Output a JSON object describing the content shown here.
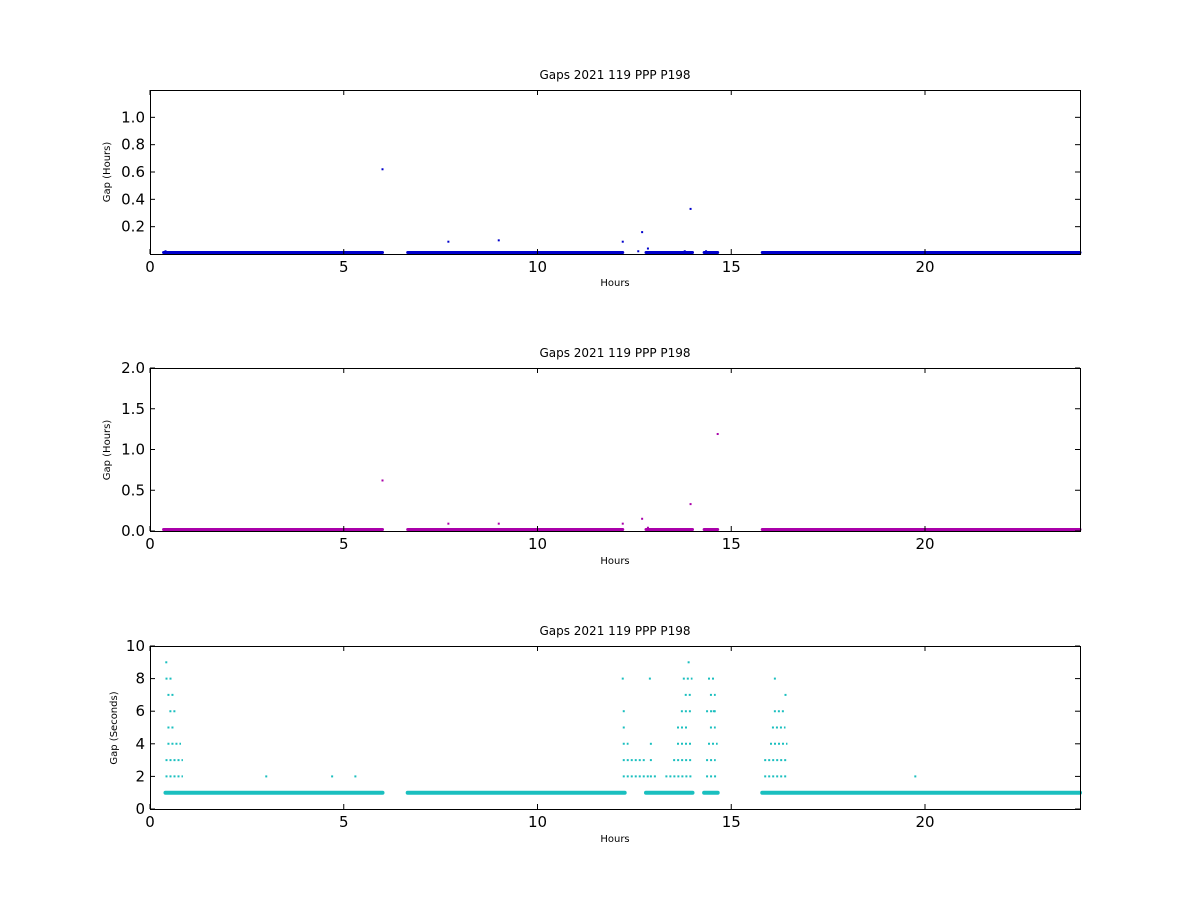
{
  "chart_data": [
    {
      "type": "scatter",
      "title": "Gaps 2021 119 PPP  P198",
      "xlabel": "Hours",
      "ylabel": "Gap (Hours)",
      "xlim": [
        0,
        24
      ],
      "ylim": [
        0,
        1.2
      ],
      "xticks": [
        0,
        5,
        10,
        15,
        20
      ],
      "yticks": [
        0.2,
        0.4,
        0.6,
        0.8,
        1.0
      ],
      "ytick_labels": [
        "0.2",
        "0.4",
        "0.6",
        "0.8",
        "1.0"
      ],
      "grid": false,
      "color": "#0000cc",
      "baseline_y": 0.0003,
      "baseline_segments": [
        [
          0.35,
          6.0
        ],
        [
          6.65,
          12.2
        ],
        [
          12.8,
          14.0
        ],
        [
          14.3,
          14.65
        ],
        [
          15.8,
          24.0
        ]
      ],
      "outliers": [
        {
          "x": 0.4,
          "y": 0.02
        },
        {
          "x": 0.5,
          "y": 0.01
        },
        {
          "x": 6.0,
          "y": 0.62
        },
        {
          "x": 7.7,
          "y": 0.09
        },
        {
          "x": 9.0,
          "y": 0.1
        },
        {
          "x": 12.2,
          "y": 0.09
        },
        {
          "x": 12.6,
          "y": 0.02
        },
        {
          "x": 12.7,
          "y": 0.16
        },
        {
          "x": 12.85,
          "y": 0.04
        },
        {
          "x": 13.8,
          "y": 0.02
        },
        {
          "x": 13.95,
          "y": 0.33
        },
        {
          "x": 14.35,
          "y": 0.02
        },
        {
          "x": 15.8,
          "y": 0.01
        }
      ]
    },
    {
      "type": "scatter",
      "title": "Gaps 2021 119 PPP  P198",
      "xlabel": "Hours",
      "ylabel": "Gap (Hours)",
      "xlim": [
        0,
        24
      ],
      "ylim": [
        0,
        2.0
      ],
      "xticks": [
        0,
        5,
        10,
        15,
        20
      ],
      "yticks": [
        0.0,
        0.5,
        1.0,
        1.5,
        2.0
      ],
      "ytick_labels": [
        "0.0",
        "0.5",
        "1.0",
        "1.5",
        "2.0"
      ],
      "grid": false,
      "color": "#aa00aa",
      "baseline_y": 0.0003,
      "baseline_segments": [
        [
          0.35,
          6.0
        ],
        [
          6.65,
          12.2
        ],
        [
          12.8,
          14.0
        ],
        [
          14.3,
          14.65
        ],
        [
          15.8,
          24.0
        ]
      ],
      "outliers": [
        {
          "x": 0.4,
          "y": 0.02
        },
        {
          "x": 6.0,
          "y": 0.62
        },
        {
          "x": 7.7,
          "y": 0.09
        },
        {
          "x": 9.0,
          "y": 0.09
        },
        {
          "x": 12.2,
          "y": 0.09
        },
        {
          "x": 12.7,
          "y": 0.15
        },
        {
          "x": 12.85,
          "y": 0.04
        },
        {
          "x": 13.8,
          "y": 0.02
        },
        {
          "x": 13.95,
          "y": 0.33
        },
        {
          "x": 14.35,
          "y": 0.02
        },
        {
          "x": 14.65,
          "y": 1.19
        }
      ]
    },
    {
      "type": "scatter",
      "title": "Gaps 2021 119 PPP  P198",
      "xlabel": "Hours",
      "ylabel": "Gap (Seconds)",
      "xlim": [
        0,
        24
      ],
      "ylim": [
        0,
        10
      ],
      "xticks": [
        0,
        5,
        10,
        15,
        20
      ],
      "yticks": [
        0,
        2,
        4,
        6,
        8,
        10
      ],
      "ytick_labels": [
        "0",
        "2",
        "4",
        "6",
        "8",
        "10"
      ],
      "grid": false,
      "color": "#1abfbf",
      "baseline_y": 1,
      "baseline_segments": [
        [
          0.4,
          6.0
        ],
        [
          6.65,
          12.25
        ],
        [
          12.8,
          14.0
        ],
        [
          14.3,
          14.65
        ],
        [
          15.8,
          24.0
        ]
      ],
      "clusters": [
        {
          "y": 2,
          "x0": 0.4,
          "x1": 0.85
        },
        {
          "y": 3,
          "x0": 0.4,
          "x1": 0.85
        },
        {
          "y": 4,
          "x0": 0.45,
          "x1": 0.8
        },
        {
          "y": 5,
          "x0": 0.45,
          "x1": 0.65
        },
        {
          "y": 6,
          "x0": 0.5,
          "x1": 0.7
        },
        {
          "y": 7,
          "x0": 0.45,
          "x1": 0.65
        },
        {
          "y": 8,
          "x0": 0.4,
          "x1": 0.6
        },
        {
          "y": 2,
          "x0": 12.2,
          "x1": 12.9
        },
        {
          "y": 3,
          "x0": 12.2,
          "x1": 12.8
        },
        {
          "y": 4,
          "x0": 12.2,
          "x1": 12.35
        },
        {
          "y": 5,
          "x0": 12.2,
          "x1": 12.3
        },
        {
          "y": 6,
          "x0": 12.2,
          "x1": 12.3
        },
        {
          "y": 2,
          "x0": 12.9,
          "x1": 13.1
        },
        {
          "y": 3,
          "x0": 12.9,
          "x1": 13.0
        },
        {
          "y": 4,
          "x0": 12.9,
          "x1": 13.0
        },
        {
          "y": 2,
          "x0": 13.3,
          "x1": 14.0
        },
        {
          "y": 3,
          "x0": 13.5,
          "x1": 14.0
        },
        {
          "y": 4,
          "x0": 13.6,
          "x1": 14.0
        },
        {
          "y": 5,
          "x0": 13.6,
          "x1": 13.9
        },
        {
          "y": 6,
          "x0": 13.7,
          "x1": 14.0
        },
        {
          "y": 7,
          "x0": 13.8,
          "x1": 14.0
        },
        {
          "y": 8,
          "x0": 13.75,
          "x1": 14.0
        },
        {
          "y": 2,
          "x0": 14.35,
          "x1": 14.65
        },
        {
          "y": 3,
          "x0": 14.35,
          "x1": 14.6
        },
        {
          "y": 4,
          "x0": 14.4,
          "x1": 14.65
        },
        {
          "y": 5,
          "x0": 14.45,
          "x1": 14.6
        },
        {
          "y": 6,
          "x0": 14.35,
          "x1": 14.6
        },
        {
          "y": 7,
          "x0": 14.45,
          "x1": 14.6
        },
        {
          "y": 8,
          "x0": 14.4,
          "x1": 14.6
        },
        {
          "y": 2,
          "x0": 15.85,
          "x1": 16.45
        },
        {
          "y": 3,
          "x0": 15.85,
          "x1": 16.45
        },
        {
          "y": 4,
          "x0": 16.0,
          "x1": 16.45
        },
        {
          "y": 5,
          "x0": 16.05,
          "x1": 16.4
        },
        {
          "y": 6,
          "x0": 16.1,
          "x1": 16.4
        },
        {
          "y": 8,
          "x0": 16.1,
          "x1": 16.2
        }
      ],
      "outliers": [
        {
          "x": 0.42,
          "y": 9
        },
        {
          "x": 3.0,
          "y": 2
        },
        {
          "x": 4.7,
          "y": 2
        },
        {
          "x": 5.3,
          "y": 2
        },
        {
          "x": 12.2,
          "y": 8
        },
        {
          "x": 12.9,
          "y": 8
        },
        {
          "x": 13.9,
          "y": 9
        },
        {
          "x": 14.55,
          "y": 6
        },
        {
          "x": 16.4,
          "y": 7
        },
        {
          "x": 19.75,
          "y": 2
        }
      ]
    }
  ]
}
